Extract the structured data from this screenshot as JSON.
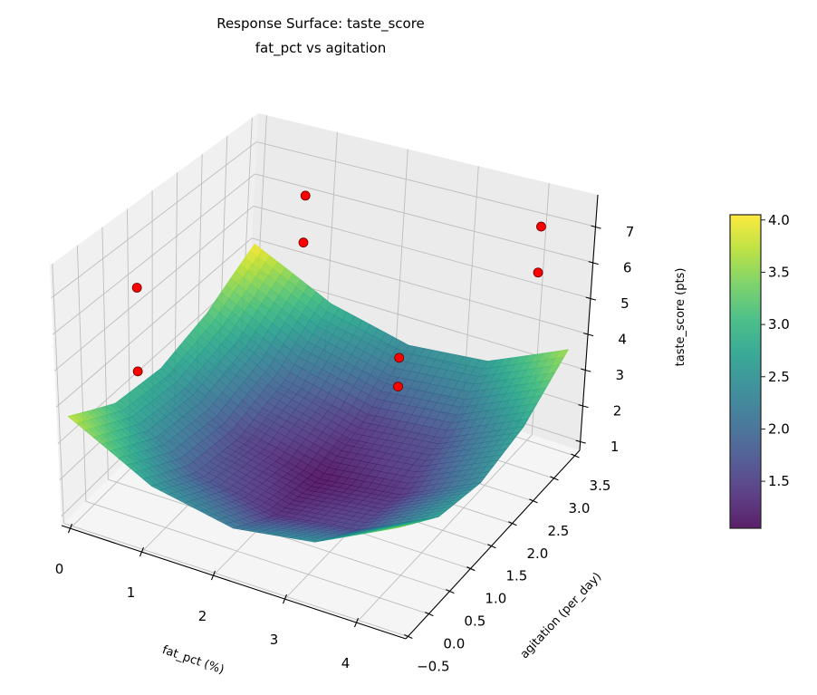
{
  "chart_data": {
    "type": "surface",
    "title": "Response Surface: taste_score",
    "subtitle": "fat_pct vs agitation",
    "xlabel": "fat_pct (%)",
    "ylabel": "agitation (per_day)",
    "zlabel": "taste_score (pts)",
    "xlim": [
      -0.12,
      4.69
    ],
    "ylim": [
      -0.55,
      3.62
    ],
    "zlim": [
      0.75,
      7.89
    ],
    "x_ticks": [
      "0",
      "1",
      "2",
      "3",
      "4"
    ],
    "y_ticks": [
      "−0.5",
      "0.0",
      "0.5",
      "1.0",
      "1.5",
      "2.0",
      "2.5",
      "3.0",
      "3.5"
    ],
    "z_ticks": [
      "1",
      "2",
      "3",
      "4",
      "5",
      "6",
      "7"
    ],
    "grid": true,
    "colormap": "viridis",
    "surface": {
      "x": [
        0,
        1.125,
        2.25,
        3.375,
        4.5
      ],
      "y": [
        -0.5,
        0.5,
        1.5,
        2.5,
        3.5
      ],
      "z": [
        [
          3.77,
          2.57,
          2.13,
          2.46,
          3.54
        ],
        [
          2.98,
          1.76,
          1.3,
          1.6,
          2.65
        ],
        [
          2.79,
          1.54,
          1.06,
          1.34,
          2.37
        ],
        [
          3.19,
          1.93,
          1.42,
          1.68,
          2.69
        ],
        [
          4.05,
          2.92,
          2.39,
          2.62,
          3.61
        ]
      ]
    },
    "points": [
      {
        "x": 0,
        "y": 1,
        "z": 3.3
      },
      {
        "x": 0,
        "y": 1,
        "z": 5.7
      },
      {
        "x": 1,
        "y": 3,
        "z": 5.3
      },
      {
        "x": 1,
        "y": 3,
        "z": 6.7
      },
      {
        "x": 3.3,
        "y": 1.5,
        "z": 4.3
      },
      {
        "x": 3.3,
        "y": 1.5,
        "z": 5.1
      },
      {
        "x": 4,
        "y": 3.5,
        "z": 5.5
      },
      {
        "x": 4,
        "y": 3.5,
        "z": 6.8
      }
    ],
    "point_color": "#ff0000",
    "colorbar": {
      "range": [
        1.05,
        4.05
      ],
      "ticks": [
        "1.5",
        "2.0",
        "2.5",
        "3.0",
        "3.5",
        "4.0"
      ]
    },
    "legend": "none"
  }
}
